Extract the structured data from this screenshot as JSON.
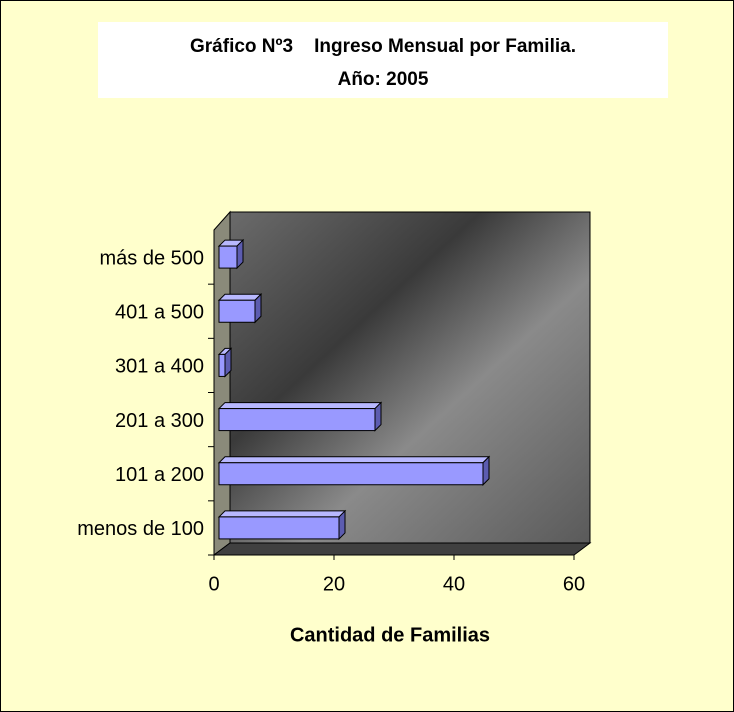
{
  "chart_data": {
    "type": "bar3d_horizontal",
    "title": "Gráfico Nº3    Ingreso Mensual por Familia.",
    "subtitle": "Año: 2005",
    "x_label": "Cantidad de Familias",
    "categories": [
      "menos de 100",
      "101 a  200",
      "201 a  300",
      "301 a  400",
      "401 a  500",
      "más de 500"
    ],
    "values": [
      20,
      44,
      26,
      1,
      6,
      3
    ],
    "color": "#9999ff",
    "xlim": [
      0,
      60
    ],
    "xticks": [
      0,
      20,
      40,
      60
    ]
  }
}
